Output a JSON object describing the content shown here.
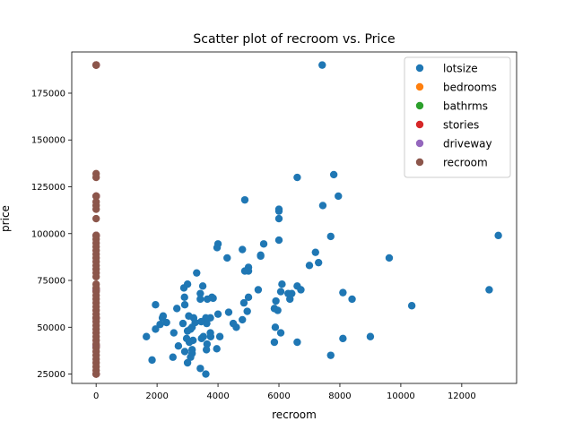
{
  "chart_data": {
    "type": "scatter",
    "title": "Scatter plot of recroom vs. Price",
    "xlabel": "recroom",
    "ylabel": "price",
    "xlim": [
      -800,
      13800
    ],
    "ylim": [
      20000,
      197000
    ],
    "xticks": [
      0,
      2000,
      4000,
      6000,
      8000,
      10000,
      12000
    ],
    "yticks": [
      25000,
      50000,
      75000,
      100000,
      125000,
      150000,
      175000
    ],
    "grid": false,
    "legend_position": "top-right",
    "series": [
      {
        "name": "lotsize",
        "color": "#1f77b4",
        "points": [
          [
            7420,
            190000
          ],
          [
            13200,
            99000
          ],
          [
            12900,
            70000
          ],
          [
            10360,
            61500
          ],
          [
            9620,
            87000
          ],
          [
            9000,
            45000
          ],
          [
            8400,
            65000
          ],
          [
            8100,
            68500
          ],
          [
            8100,
            44000
          ],
          [
            7950,
            120000
          ],
          [
            7800,
            131500
          ],
          [
            7700,
            98500
          ],
          [
            7700,
            35000
          ],
          [
            7440,
            115000
          ],
          [
            7300,
            84500
          ],
          [
            7200,
            90000
          ],
          [
            7000,
            83000
          ],
          [
            6720,
            70000
          ],
          [
            6600,
            130000
          ],
          [
            6600,
            72000
          ],
          [
            6600,
            42000
          ],
          [
            6420,
            68000
          ],
          [
            6360,
            65000
          ],
          [
            6300,
            68000
          ],
          [
            6100,
            73000
          ],
          [
            6060,
            69000
          ],
          [
            6060,
            47000
          ],
          [
            6000,
            113000
          ],
          [
            6000,
            112000
          ],
          [
            6000,
            108000
          ],
          [
            6000,
            96500
          ],
          [
            5960,
            59000
          ],
          [
            5900,
            64000
          ],
          [
            5880,
            50000
          ],
          [
            5850,
            42000
          ],
          [
            5850,
            60000
          ],
          [
            5500,
            94500
          ],
          [
            5400,
            88500
          ],
          [
            5400,
            88000
          ],
          [
            5320,
            70000
          ],
          [
            5000,
            82000
          ],
          [
            5000,
            80000
          ],
          [
            5000,
            66000
          ],
          [
            4960,
            58500
          ],
          [
            4880,
            118000
          ],
          [
            4880,
            80000
          ],
          [
            4850,
            63000
          ],
          [
            4800,
            91500
          ],
          [
            4800,
            54000
          ],
          [
            4600,
            50000
          ],
          [
            4500,
            52000
          ],
          [
            4350,
            58000
          ],
          [
            4300,
            87000
          ],
          [
            4060,
            45000
          ],
          [
            4000,
            57000
          ],
          [
            4000,
            94500
          ],
          [
            3970,
            92500
          ],
          [
            3960,
            38500
          ],
          [
            3840,
            65500
          ],
          [
            3800,
            66000
          ],
          [
            3760,
            45000
          ],
          [
            3750,
            55000
          ],
          [
            3750,
            47000
          ],
          [
            3650,
            65000
          ],
          [
            3640,
            41000
          ],
          [
            3630,
            52000
          ],
          [
            3620,
            38000
          ],
          [
            3600,
            55000
          ],
          [
            3600,
            25000
          ],
          [
            3520,
            45000
          ],
          [
            3500,
            72000
          ],
          [
            3460,
            44000
          ],
          [
            3450,
            53000
          ],
          [
            3420,
            28000
          ],
          [
            3420,
            68000
          ],
          [
            3420,
            65000
          ],
          [
            3300,
            79000
          ],
          [
            3250,
            52500
          ],
          [
            3200,
            55000
          ],
          [
            3180,
            43000
          ],
          [
            3150,
            38000
          ],
          [
            3150,
            36000
          ],
          [
            3150,
            50000
          ],
          [
            3100,
            49000
          ],
          [
            3100,
            34000
          ],
          [
            3060,
            42000
          ],
          [
            3040,
            56000
          ],
          [
            3000,
            48000
          ],
          [
            3000,
            31000
          ],
          [
            3000,
            73000
          ],
          [
            2970,
            44000
          ],
          [
            2910,
            37000
          ],
          [
            2910,
            62000
          ],
          [
            2900,
            66000
          ],
          [
            2880,
            71000
          ],
          [
            2850,
            52000
          ],
          [
            2700,
            40000
          ],
          [
            2650,
            60000
          ],
          [
            2550,
            47000
          ],
          [
            2520,
            34000
          ],
          [
            2310,
            52500
          ],
          [
            2200,
            56000
          ],
          [
            2175,
            55000
          ],
          [
            2100,
            51500
          ],
          [
            1950,
            49000
          ],
          [
            1950,
            62000
          ],
          [
            1836,
            32500
          ],
          [
            1650,
            45000
          ]
        ]
      },
      {
        "name": "bedrooms",
        "color": "#ff7f0e",
        "points": [
          [
            3,
            190000
          ],
          [
            4,
            99000
          ],
          [
            3,
            70000
          ],
          [
            2,
            40000
          ],
          [
            3,
            55000
          ],
          [
            4,
            120000
          ],
          [
            2,
            25000
          ]
        ]
      },
      {
        "name": "bathrms",
        "color": "#2ca02c",
        "points": [
          [
            1,
            190000
          ],
          [
            2,
            99000
          ],
          [
            1,
            70000
          ],
          [
            1,
            40000
          ],
          [
            1,
            55000
          ],
          [
            2,
            120000
          ],
          [
            1,
            25000
          ]
        ]
      },
      {
        "name": "stories",
        "color": "#d62728",
        "points": [
          [
            2,
            190000
          ],
          [
            2,
            99000
          ],
          [
            1,
            70000
          ],
          [
            1,
            40000
          ],
          [
            2,
            55000
          ],
          [
            3,
            120000
          ],
          [
            1,
            25000
          ]
        ]
      },
      {
        "name": "driveway",
        "color": "#9467bd",
        "points": [
          [
            1,
            190000
          ],
          [
            1,
            99000
          ],
          [
            1,
            70000
          ],
          [
            0,
            40000
          ],
          [
            1,
            55000
          ],
          [
            1,
            120000
          ],
          [
            0,
            25000
          ]
        ]
      },
      {
        "name": "recroom",
        "color": "#8c564b",
        "points": [
          [
            0,
            190000
          ],
          [
            0,
            132000
          ],
          [
            0,
            130000
          ],
          [
            0,
            120000
          ],
          [
            0,
            117000
          ],
          [
            0,
            115000
          ],
          [
            0,
            113000
          ],
          [
            0,
            108000
          ],
          [
            0,
            99000
          ],
          [
            0,
            97000
          ],
          [
            0,
            95000
          ],
          [
            0,
            93000
          ],
          [
            0,
            91000
          ],
          [
            0,
            89000
          ],
          [
            0,
            87000
          ],
          [
            0,
            85000
          ],
          [
            0,
            83000
          ],
          [
            0,
            81000
          ],
          [
            0,
            79000
          ],
          [
            0,
            77000
          ],
          [
            0,
            73000
          ],
          [
            0,
            71000
          ],
          [
            0,
            69000
          ],
          [
            0,
            67000
          ],
          [
            0,
            65000
          ],
          [
            0,
            63000
          ],
          [
            0,
            61000
          ],
          [
            0,
            59000
          ],
          [
            0,
            57000
          ],
          [
            0,
            55000
          ],
          [
            0,
            53000
          ],
          [
            0,
            51000
          ],
          [
            0,
            49000
          ],
          [
            0,
            47000
          ],
          [
            0,
            45000
          ],
          [
            0,
            43000
          ],
          [
            0,
            41000
          ],
          [
            0,
            39000
          ],
          [
            0,
            37000
          ],
          [
            0,
            35000
          ],
          [
            0,
            33000
          ],
          [
            0,
            31000
          ],
          [
            0,
            29000
          ],
          [
            0,
            27000
          ],
          [
            0,
            25000
          ]
        ]
      }
    ]
  }
}
